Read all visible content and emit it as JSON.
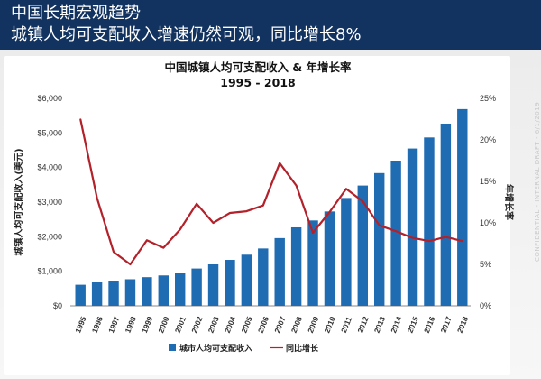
{
  "header": {
    "line1": "中国长期宏观趋势",
    "line2": "城镇人均可支配收入增速仍然可观，同比增长8%"
  },
  "watermark": "CONFIDENTIAL - INTERNAL DRAFT - 6/1/2019",
  "colors": {
    "header_bg": "#12325f",
    "bar": "#1f6cb3",
    "line": "#b3212a"
  },
  "chart_data": {
    "type": "bar",
    "title": "中国城镇人均可支配收入 & 年增长率",
    "subtitle": "1995 - 2018",
    "ylabel": "城镇人均可支配收入(美元)",
    "y2label": "年增长率",
    "ylim": [
      0,
      6000
    ],
    "y2lim": [
      0,
      25
    ],
    "yticks": [
      "$0",
      "$1,000",
      "$2,000",
      "$3,000",
      "$4,000",
      "$5,000",
      "$6,000"
    ],
    "y2ticks": [
      "0%",
      "5%",
      "10%",
      "15%",
      "20%",
      "25%"
    ],
    "categories": [
      "1995",
      "1996",
      "1997",
      "1998",
      "1999",
      "2000",
      "2001",
      "2002",
      "2003",
      "2004",
      "2005",
      "2006",
      "2007",
      "2008",
      "2009",
      "2010",
      "2011",
      "2012",
      "2013",
      "2014",
      "2015",
      "2016",
      "2017",
      "2018"
    ],
    "series": [
      {
        "name": "城市人均可支配收入",
        "type": "bar",
        "axis": "left",
        "values": [
          610,
          680,
          730,
          770,
          830,
          880,
          960,
          1080,
          1200,
          1330,
          1480,
          1660,
          1960,
          2270,
          2470,
          2730,
          3120,
          3480,
          3840,
          4200,
          4550,
          4870,
          5270,
          5690
        ]
      },
      {
        "name": "同比增长",
        "type": "line",
        "axis": "right",
        "values": [
          22.5,
          13.0,
          6.5,
          5.0,
          7.9,
          7.0,
          9.2,
          12.3,
          10.0,
          11.2,
          11.4,
          12.1,
          17.2,
          14.5,
          8.8,
          11.3,
          14.1,
          12.6,
          9.7,
          9.0,
          8.2,
          7.8,
          8.3,
          7.8
        ]
      }
    ],
    "legend_position": "bottom",
    "grid": false
  }
}
